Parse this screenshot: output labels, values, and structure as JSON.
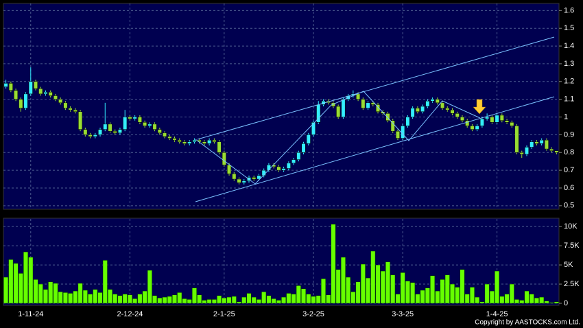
{
  "chart_data": [
    {
      "type": "candlestick",
      "categories": [
        null,
        null,
        null,
        null,
        null,
        "1-11-24",
        null,
        null,
        null,
        null,
        null,
        null,
        null,
        null,
        null,
        null,
        null,
        null,
        null,
        null,
        null,
        null,
        null,
        null,
        null,
        "2-12-24",
        null,
        null,
        null,
        null,
        null,
        null,
        null,
        null,
        null,
        null,
        null,
        null,
        null,
        null,
        null,
        null,
        null,
        null,
        "2-1-25",
        null,
        null,
        null,
        null,
        null,
        null,
        null,
        null,
        null,
        null,
        null,
        null,
        null,
        null,
        null,
        null,
        null,
        "3-2-25",
        null,
        null,
        null,
        null,
        null,
        null,
        null,
        null,
        null,
        null,
        null,
        null,
        null,
        null,
        null,
        null,
        null,
        "3-3-25",
        null,
        null,
        null,
        null,
        null,
        null,
        null,
        null,
        null,
        null,
        null,
        null,
        null,
        null,
        null,
        null,
        null,
        null,
        "1-4-25",
        null,
        null,
        null,
        null,
        null,
        null,
        null,
        null,
        null,
        null,
        null,
        null
      ],
      "open": [
        1.17,
        1.19,
        1.15,
        1.1,
        1.05,
        1.13,
        1.2,
        1.16,
        1.13,
        1.14,
        1.12,
        1.1,
        1.08,
        1.05,
        1.04,
        1.03,
        0.93,
        0.9,
        0.89,
        0.9,
        0.93,
        0.96,
        0.92,
        0.91,
        0.93,
        1.0,
        0.99,
        1.0,
        0.97,
        0.95,
        0.96,
        0.93,
        0.91,
        0.89,
        0.88,
        0.87,
        0.86,
        0.85,
        0.86,
        0.87,
        0.86,
        0.85,
        0.87,
        0.86,
        0.8,
        0.73,
        0.68,
        0.65,
        0.63,
        0.64,
        0.66,
        0.65,
        0.67,
        0.7,
        0.73,
        0.72,
        0.7,
        0.71,
        0.74,
        0.76,
        0.8,
        0.85,
        0.9,
        0.97,
        1.07,
        1.09,
        1.08,
        1.06,
        1.0,
        1.1,
        1.12,
        1.13,
        1.1,
        1.05,
        1.08,
        1.07,
        1.03,
        1.02,
        0.98,
        0.92,
        0.88,
        0.95,
        1.0,
        1.05,
        1.03,
        1.06,
        1.09,
        1.1,
        1.08,
        1.05,
        1.04,
        1.02,
        1.0,
        0.98,
        0.95,
        0.93,
        0.95,
        0.99,
        1.0,
        0.97,
        1.01,
        0.98,
        0.97,
        0.95,
        0.8,
        0.79,
        0.83,
        0.86,
        0.85,
        0.87,
        0.82,
        0.81
      ],
      "high": [
        1.21,
        1.2,
        1.16,
        1.11,
        1.14,
        1.28,
        1.21,
        1.17,
        1.15,
        1.15,
        1.13,
        1.11,
        1.09,
        1.06,
        1.05,
        1.04,
        0.94,
        0.91,
        0.91,
        0.94,
        1.08,
        0.97,
        0.93,
        0.94,
        1.04,
        1.01,
        1.01,
        1.01,
        0.98,
        0.97,
        0.97,
        0.94,
        0.92,
        0.9,
        0.89,
        0.88,
        0.87,
        0.87,
        0.88,
        0.88,
        0.87,
        0.88,
        0.88,
        0.87,
        0.81,
        0.74,
        0.69,
        0.66,
        0.65,
        0.67,
        0.67,
        0.68,
        0.71,
        0.74,
        0.74,
        0.73,
        0.72,
        0.75,
        0.77,
        0.81,
        0.86,
        0.91,
        0.98,
        1.09,
        1.1,
        1.1,
        1.09,
        1.07,
        1.11,
        1.13,
        1.15,
        1.14,
        1.11,
        1.09,
        1.09,
        1.08,
        1.04,
        1.03,
        0.99,
        0.93,
        0.96,
        1.01,
        1.06,
        1.06,
        1.07,
        1.1,
        1.11,
        1.11,
        1.09,
        1.06,
        1.05,
        1.03,
        1.01,
        0.99,
        0.96,
        0.96,
        1.0,
        1.02,
        1.01,
        1.02,
        1.02,
        0.99,
        0.98,
        0.96,
        0.81,
        0.84,
        0.87,
        0.87,
        0.88,
        0.88,
        0.83,
        0.81
      ],
      "low": [
        1.16,
        1.14,
        1.09,
        1.03,
        1.04,
        1.12,
        1.15,
        1.12,
        1.12,
        1.11,
        1.09,
        1.07,
        1.04,
        1.03,
        1.02,
        0.92,
        0.89,
        0.88,
        0.88,
        0.89,
        0.92,
        0.91,
        0.9,
        0.9,
        0.92,
        0.98,
        0.98,
        0.96,
        0.94,
        0.94,
        0.92,
        0.9,
        0.88,
        0.87,
        0.86,
        0.85,
        0.84,
        0.84,
        0.85,
        0.85,
        0.84,
        0.84,
        0.85,
        0.79,
        0.72,
        0.67,
        0.64,
        0.62,
        0.62,
        0.63,
        0.64,
        0.64,
        0.66,
        0.69,
        0.71,
        0.69,
        0.69,
        0.7,
        0.73,
        0.75,
        0.79,
        0.84,
        0.89,
        0.96,
        1.06,
        1.07,
        1.05,
        0.99,
        0.99,
        1.09,
        1.11,
        1.09,
        1.04,
        1.04,
        1.06,
        1.02,
        1.01,
        0.97,
        0.91,
        0.87,
        0.87,
        0.94,
        0.99,
        1.02,
        1.02,
        1.05,
        1.08,
        1.07,
        1.04,
        1.03,
        1.01,
        0.99,
        0.97,
        0.94,
        0.92,
        0.92,
        0.94,
        0.98,
        0.96,
        0.96,
        0.97,
        0.96,
        0.94,
        0.79,
        0.77,
        0.78,
        0.82,
        0.84,
        0.84,
        0.81,
        0.8,
        0.79
      ],
      "close": [
        1.19,
        1.15,
        1.1,
        1.05,
        1.13,
        1.2,
        1.16,
        1.13,
        1.14,
        1.12,
        1.1,
        1.08,
        1.05,
        1.04,
        1.03,
        0.93,
        0.9,
        0.89,
        0.9,
        0.93,
        0.96,
        0.92,
        0.91,
        0.93,
        1.0,
        0.99,
        1.0,
        0.97,
        0.95,
        0.96,
        0.93,
        0.91,
        0.89,
        0.88,
        0.87,
        0.86,
        0.85,
        0.86,
        0.87,
        0.86,
        0.85,
        0.87,
        0.86,
        0.8,
        0.73,
        0.68,
        0.65,
        0.63,
        0.64,
        0.66,
        0.65,
        0.67,
        0.7,
        0.73,
        0.72,
        0.7,
        0.71,
        0.74,
        0.76,
        0.8,
        0.85,
        0.9,
        0.97,
        1.07,
        1.09,
        1.08,
        1.06,
        1.0,
        1.1,
        1.12,
        1.13,
        1.1,
        1.05,
        1.08,
        1.07,
        1.03,
        1.02,
        0.98,
        0.92,
        0.88,
        0.95,
        1.0,
        1.05,
        1.03,
        1.06,
        1.09,
        1.1,
        1.08,
        1.05,
        1.04,
        1.02,
        1.0,
        0.98,
        0.95,
        0.93,
        0.95,
        0.99,
        1.0,
        0.97,
        1.01,
        0.98,
        0.97,
        0.95,
        0.8,
        0.79,
        0.83,
        0.86,
        0.85,
        0.87,
        0.82,
        0.81,
        0.8
      ],
      "up_color": "#33eeff",
      "down_color": "#99dd33",
      "ylim": [
        0.48,
        1.64
      ],
      "yticks": [
        0.5,
        0.6,
        0.7,
        0.8,
        0.9,
        1,
        1.1,
        1.2,
        1.3,
        1.4,
        1.5,
        1.6
      ],
      "grid": true
    },
    {
      "type": "bar",
      "values": [
        3400,
        5700,
        5200,
        3900,
        6700,
        6000,
        3100,
        2500,
        1800,
        2800,
        2600,
        1500,
        1400,
        1300,
        1600,
        2600,
        1700,
        1200,
        1800,
        1400,
        5600,
        1800,
        1200,
        1000,
        1200,
        1100,
        600,
        1200,
        1600,
        4300,
        1000,
        700,
        800,
        900,
        1100,
        1400,
        600,
        500,
        2000,
        1100,
        400,
        500,
        500,
        1000,
        700,
        800,
        900,
        200,
        800,
        1300,
        800,
        500,
        1500,
        1000,
        600,
        400,
        800,
        1300,
        1200,
        2300,
        1900,
        1200,
        900,
        1000,
        3200,
        1100,
        10300,
        4400,
        6000,
        3400,
        1500,
        2800,
        5100,
        3300,
        6800,
        5000,
        4200,
        5400,
        3700,
        1200,
        4000,
        2900,
        2700,
        1200,
        1700,
        2000,
        3600,
        1600,
        3100,
        3700,
        2500,
        2100,
        4400,
        1200,
        2100,
        800,
        200,
        2500,
        1600,
        4200,
        900,
        1200,
        2500,
        500,
        400,
        1600,
        1200,
        700,
        800,
        300,
        100,
        200
      ],
      "color": "#66ff00",
      "ylim": [
        0,
        11000
      ],
      "yticks": [
        0,
        {
          "value": 2500,
          "label": "2.5K"
        },
        {
          "value": 5000,
          "label": "5K"
        },
        {
          "value": 7500,
          "label": "7.5K"
        },
        {
          "value": 10000,
          "label": "10K"
        }
      ],
      "grid": true
    }
  ],
  "copyright": "Copyright by AASTOCKS.com Ltd."
}
